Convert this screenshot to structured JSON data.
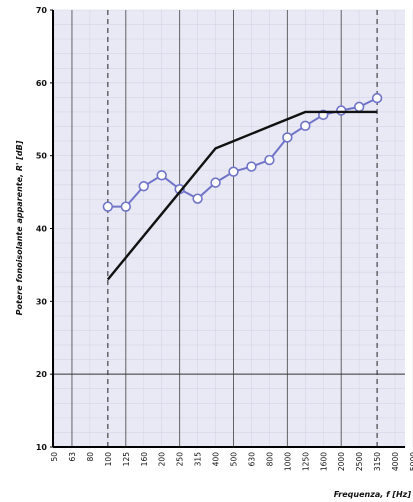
{
  "chart_data": {
    "type": "line",
    "xlabel": "Frequenza, f [Hz]",
    "ylabel": "Potere fonoisolante apparente, R' [dB]",
    "ylim": [
      10,
      70
    ],
    "yticks": [
      10,
      20,
      30,
      40,
      50,
      60,
      70
    ],
    "categories": [
      "50",
      "63",
      "80",
      "100",
      "125",
      "160",
      "200",
      "250",
      "315",
      "400",
      "500",
      "630",
      "800",
      "1000",
      "1250",
      "1600",
      "2000",
      "2500",
      "3150",
      "4000",
      "5000"
    ],
    "dashed_vlines": [
      "100",
      "3150"
    ],
    "solid_vlines": [
      "63",
      "125",
      "250",
      "500",
      "1000",
      "2000"
    ],
    "hline": 20,
    "grid": "light",
    "series": [
      {
        "style": "measured",
        "color": "#6f74c8",
        "x": [
          "100",
          "125",
          "160",
          "200",
          "250",
          "315",
          "400",
          "500",
          "630",
          "800",
          "1000",
          "1250",
          "1600",
          "2000",
          "2500",
          "3150"
        ],
        "values": [
          43.0,
          43.0,
          45.8,
          47.3,
          45.4,
          44.1,
          46.3,
          47.8,
          48.5,
          49.4,
          52.5,
          54.1,
          55.6,
          56.2,
          56.7,
          57.9
        ]
      },
      {
        "style": "reference",
        "color": "#111111",
        "x": [
          "100",
          "125",
          "160",
          "200",
          "250",
          "315",
          "400",
          "500",
          "630",
          "800",
          "1000",
          "1250",
          "1600",
          "2000",
          "2500",
          "3150"
        ],
        "values": [
          33,
          36,
          39,
          42,
          45,
          48,
          51,
          52,
          53,
          54,
          55,
          56,
          56,
          56,
          56,
          56
        ]
      }
    ]
  }
}
